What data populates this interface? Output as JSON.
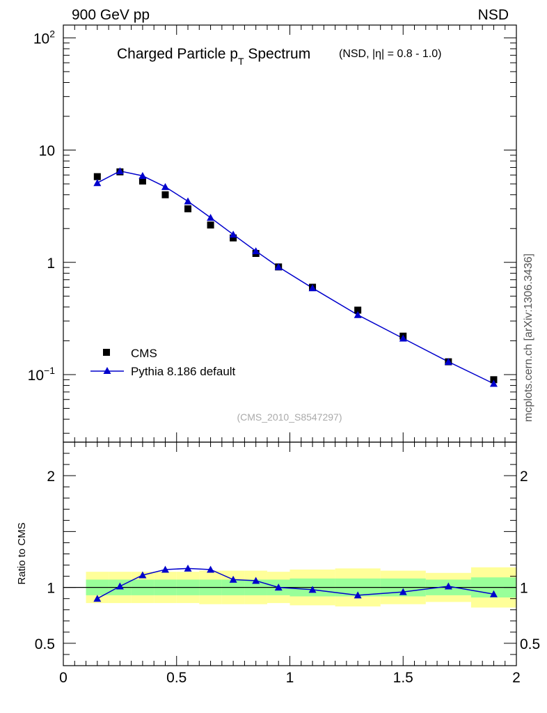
{
  "header": {
    "left": "900 GeV pp",
    "right": "NSD",
    "side_label": "mcplots.cern.ch [arXiv:1306.3436]"
  },
  "chart_data": {
    "type": "scatter",
    "title_main": "Charged Particle p",
    "title_sub": "T",
    "title_tail": " Spectrum",
    "title_note": "(NSD, |η| = 0.8 - 1.0)",
    "analysis_tag": "(CMS_2010_S8547297)",
    "xlim": [
      0,
      2
    ],
    "x_ticks": [
      "0",
      "0.5",
      "1",
      "1.5",
      "2"
    ],
    "upper_panel": {
      "yscale": "log",
      "ylim": [
        0.025,
        130
      ],
      "y_ticks": [
        {
          "value": 100,
          "base": "10",
          "exp": "2"
        },
        {
          "value": 10,
          "base": "10",
          "exp": ""
        },
        {
          "value": 1,
          "base": "1",
          "exp": ""
        },
        {
          "value": 0.1,
          "base": "10",
          "exp": "−1"
        }
      ]
    },
    "lower_panel": {
      "ylabel": "Ratio to CMS",
      "ylim": [
        0.3,
        2.3
      ],
      "y_ticks": [
        "0.5",
        "1",
        "2"
      ],
      "y_tick_values": [
        0.5,
        1,
        2
      ],
      "reference": 1
    },
    "legend": {
      "position": "bottom-left",
      "entries": [
        "CMS",
        "Pythia 8.186 default"
      ]
    },
    "colors": {
      "data": "#000000",
      "mc": "#0000cc",
      "band_inner": "#99ff99",
      "band_outer": "#ffff99"
    },
    "series": [
      {
        "name": "CMS",
        "x": [
          0.15,
          0.25,
          0.35,
          0.45,
          0.55,
          0.65,
          0.75,
          0.85,
          0.95,
          1.1,
          1.3,
          1.5,
          1.7,
          1.9
        ],
        "y": [
          5.8,
          6.4,
          5.3,
          4.0,
          3.0,
          2.15,
          1.65,
          1.2,
          0.91,
          0.6,
          0.375,
          0.22,
          0.13,
          0.09
        ]
      },
      {
        "name": "Pythia 8.186 default",
        "x": [
          0.15,
          0.25,
          0.35,
          0.45,
          0.55,
          0.65,
          0.75,
          0.85,
          0.95,
          1.1,
          1.3,
          1.5,
          1.7,
          1.9
        ],
        "y": [
          5.1,
          6.5,
          5.9,
          4.7,
          3.5,
          2.5,
          1.77,
          1.26,
          0.91,
          0.59,
          0.34,
          0.21,
          0.13,
          0.083
        ]
      }
    ],
    "ratio": {
      "x": [
        0.15,
        0.25,
        0.35,
        0.45,
        0.55,
        0.65,
        0.75,
        0.85,
        0.95,
        1.1,
        1.3,
        1.5,
        1.7,
        1.9
      ],
      "y": [
        0.9,
        1.01,
        1.11,
        1.16,
        1.17,
        1.16,
        1.07,
        1.06,
        1.0,
        0.98,
        0.93,
        0.96,
        1.01,
        0.94
      ]
    },
    "bands": [
      {
        "x0": 0.1,
        "x1": 0.2,
        "inner": [
          0.93,
          1.07
        ],
        "outer": [
          0.86,
          1.14
        ]
      },
      {
        "x0": 0.2,
        "x1": 0.3,
        "inner": [
          0.93,
          1.07
        ],
        "outer": [
          0.86,
          1.14
        ]
      },
      {
        "x0": 0.3,
        "x1": 0.4,
        "inner": [
          0.93,
          1.07
        ],
        "outer": [
          0.86,
          1.14
        ]
      },
      {
        "x0": 0.4,
        "x1": 0.5,
        "inner": [
          0.93,
          1.07
        ],
        "outer": [
          0.86,
          1.14
        ]
      },
      {
        "x0": 0.5,
        "x1": 0.6,
        "inner": [
          0.93,
          1.07
        ],
        "outer": [
          0.86,
          1.14
        ]
      },
      {
        "x0": 0.6,
        "x1": 0.7,
        "inner": [
          0.93,
          1.07
        ],
        "outer": [
          0.85,
          1.15
        ]
      },
      {
        "x0": 0.7,
        "x1": 0.8,
        "inner": [
          0.93,
          1.07
        ],
        "outer": [
          0.85,
          1.15
        ]
      },
      {
        "x0": 0.8,
        "x1": 0.9,
        "inner": [
          0.93,
          1.07
        ],
        "outer": [
          0.85,
          1.15
        ]
      },
      {
        "x0": 0.9,
        "x1": 1.0,
        "inner": [
          0.93,
          1.07
        ],
        "outer": [
          0.86,
          1.14
        ]
      },
      {
        "x0": 1.0,
        "x1": 1.2,
        "inner": [
          0.92,
          1.08
        ],
        "outer": [
          0.84,
          1.16
        ]
      },
      {
        "x0": 1.2,
        "x1": 1.4,
        "inner": [
          0.92,
          1.08
        ],
        "outer": [
          0.83,
          1.17
        ]
      },
      {
        "x0": 1.4,
        "x1": 1.6,
        "inner": [
          0.92,
          1.08
        ],
        "outer": [
          0.85,
          1.15
        ]
      },
      {
        "x0": 1.6,
        "x1": 1.8,
        "inner": [
          0.93,
          1.07
        ],
        "outer": [
          0.87,
          1.13
        ]
      },
      {
        "x0": 1.8,
        "x1": 2.0,
        "inner": [
          0.91,
          1.09
        ],
        "outer": [
          0.82,
          1.18
        ]
      }
    ]
  }
}
